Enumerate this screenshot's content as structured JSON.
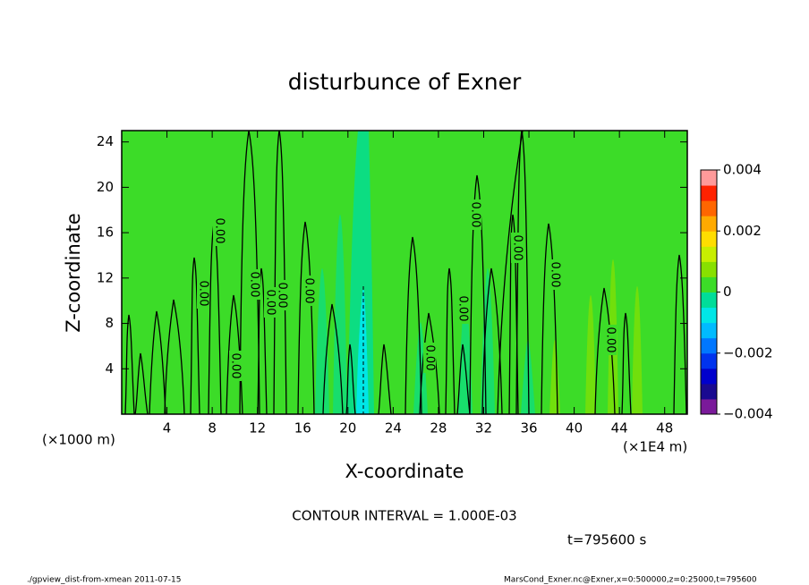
{
  "chart_data": {
    "type": "contour",
    "title": "disturbunce of Exner",
    "x_label": "X-coordinate",
    "y_label": "Z-coordinate",
    "x_unit_left": "(×1000 m)",
    "x_unit_right": "(×1E4 m)",
    "xlim": [
      0,
      50
    ],
    "xticks": [
      4,
      8,
      12,
      16,
      20,
      24,
      28,
      32,
      36,
      40,
      44,
      48
    ],
    "ylim": [
      0,
      25
    ],
    "yticks": [
      4,
      8,
      12,
      16,
      20,
      24
    ],
    "field_color": "#3cdc28",
    "clim": [
      -0.004,
      0.004
    ],
    "cticks": [
      {
        "value": -0.004,
        "label": "−0.004"
      },
      {
        "value": -0.002,
        "label": "−0.002"
      },
      0,
      0.002,
      0.004
    ],
    "colors": [
      "#7a1a9a",
      "#1a0a90",
      "#0000cc",
      "#0033ee",
      "#0077ff",
      "#00bbff",
      "#00e6e6",
      "#00dd99",
      "#3cdc28",
      "#88e000",
      "#c8ee00",
      "#ffdd00",
      "#ffaa00",
      "#ff6600",
      "#ff2200",
      "#ff9a9a"
    ],
    "contour_interval": "CONTOUR INTERVAL = 1.000E-03",
    "time": "t=795600 s",
    "contour_labels": [
      "0.00",
      "0.00",
      "0.00",
      "0.00",
      "0.00",
      "0.00",
      "0.00",
      "0.00",
      "0.00",
      "0.00",
      "0.00",
      "0.00",
      "0.00"
    ]
  },
  "footer": {
    "left": "./gpview_dist-from-xmean  2011-07-15",
    "right": "MarsCond_Exner.nc@Exner,x=0:500000,z=0:25000,t=795600"
  }
}
